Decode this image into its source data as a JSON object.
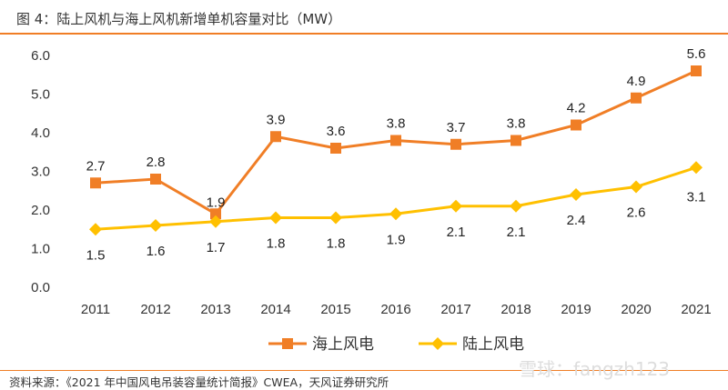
{
  "title": "图 4：陆上风机与海上风机新增单机容量对比（MW）",
  "source": "资料来源：《2021 年中国风电吊装容量统计简报》CWEA，天风证券研究所",
  "watermark": "雪球：fangzh123",
  "chart_data": {
    "type": "line",
    "title": "",
    "xlabel": "",
    "ylabel": "",
    "categories": [
      "2011",
      "2012",
      "2013",
      "2014",
      "2015",
      "2016",
      "2017",
      "2018",
      "2019",
      "2020",
      "2021"
    ],
    "ylim": [
      0,
      6
    ],
    "yticks": [
      "0.0",
      "1.0",
      "2.0",
      "3.0",
      "4.0",
      "5.0",
      "6.0"
    ],
    "grid": false,
    "legend": "bottom",
    "series": [
      {
        "name": "海上风电",
        "color": "#F07E26",
        "marker": "square",
        "values": [
          2.7,
          2.8,
          1.9,
          3.9,
          3.6,
          3.8,
          3.7,
          3.8,
          4.2,
          4.9,
          5.6
        ],
        "labels": [
          "2.7",
          "2.8",
          "1.9",
          "3.9",
          "3.6",
          "3.8",
          "3.7",
          "3.8",
          "4.2",
          "4.9",
          "5.6"
        ]
      },
      {
        "name": "陆上风电",
        "color": "#FFC000",
        "marker": "diamond",
        "values": [
          1.5,
          1.6,
          1.7,
          1.8,
          1.8,
          1.9,
          2.1,
          2.1,
          2.4,
          2.6,
          3.1
        ],
        "labels": [
          "1.5",
          "1.6",
          "1.7",
          "1.8",
          "1.8",
          "1.9",
          "2.1",
          "2.1",
          "2.4",
          "2.6",
          "3.1"
        ]
      }
    ]
  }
}
